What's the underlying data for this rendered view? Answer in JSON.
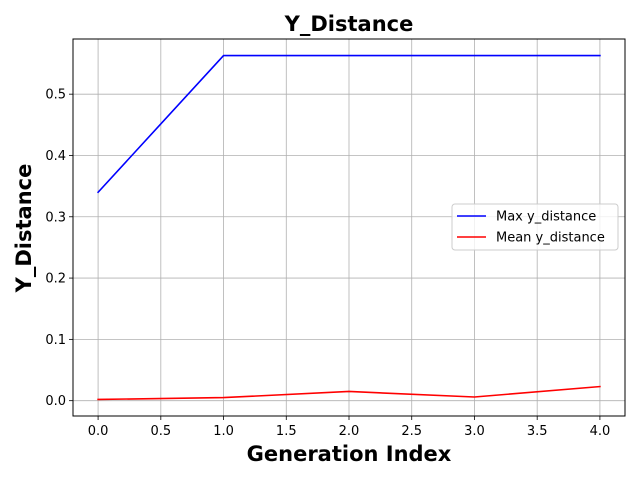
{
  "chart_data": {
    "type": "line",
    "title": "Y_Distance",
    "xlabel": "Generation Index",
    "ylabel": "Y_Distance",
    "x": [
      0,
      1,
      2,
      3,
      4
    ],
    "xlim": [
      -0.2,
      4.2
    ],
    "ylim": [
      -0.025,
      0.59
    ],
    "xticks": [
      0.0,
      0.5,
      1.0,
      1.5,
      2.0,
      2.5,
      3.0,
      3.5,
      4.0
    ],
    "xtick_labels": [
      "0.0",
      "0.5",
      "1.0",
      "1.5",
      "2.0",
      "2.5",
      "3.0",
      "3.5",
      "4.0"
    ],
    "yticks": [
      0.0,
      0.1,
      0.2,
      0.3,
      0.4,
      0.5
    ],
    "ytick_labels": [
      "0.0",
      "0.1",
      "0.2",
      "0.3",
      "0.4",
      "0.5"
    ],
    "grid": true,
    "legend_position": "center-right",
    "series": [
      {
        "name": "Max y_distance",
        "color": "#0000ff",
        "values": [
          0.34,
          0.563,
          0.563,
          0.563,
          0.563
        ]
      },
      {
        "name": "Mean y_distance",
        "color": "#ff0000",
        "values": [
          0.002,
          0.005,
          0.015,
          0.006,
          0.023
        ]
      }
    ]
  }
}
